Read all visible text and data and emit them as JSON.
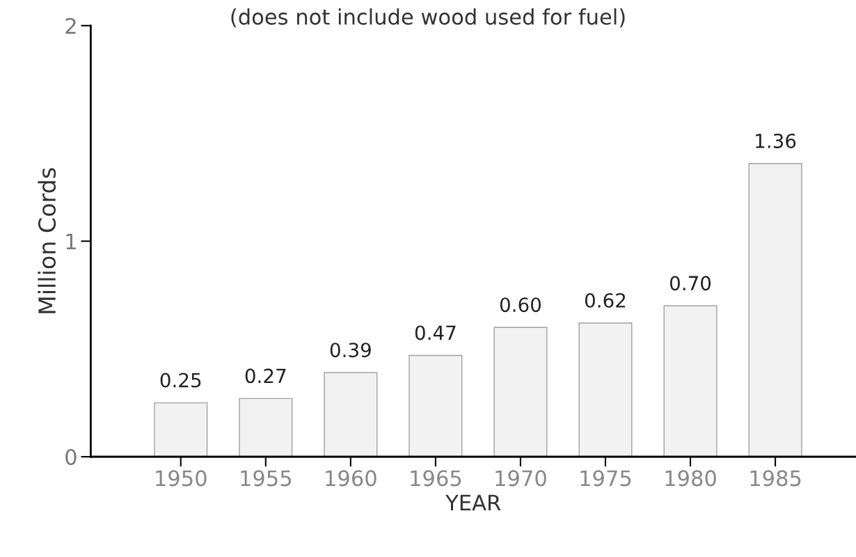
{
  "chart_data": {
    "type": "bar",
    "subtitle": "(does not include wood used for fuel)",
    "xlabel": "YEAR",
    "ylabel": "Million Cords",
    "categories": [
      "1950",
      "1955",
      "1960",
      "1965",
      "1970",
      "1975",
      "1980",
      "1985"
    ],
    "values": [
      0.25,
      0.27,
      0.39,
      0.47,
      0.6,
      0.62,
      0.7,
      1.36
    ],
    "value_labels": [
      "0.25",
      "0.27",
      "0.39",
      "0.47",
      "0.60",
      "0.62",
      "0.70",
      "1.36"
    ],
    "color": "#f2f2f2",
    "ylim": [
      0,
      2
    ],
    "yticks": [
      0,
      1,
      2
    ],
    "grid": false,
    "legend": false
  }
}
